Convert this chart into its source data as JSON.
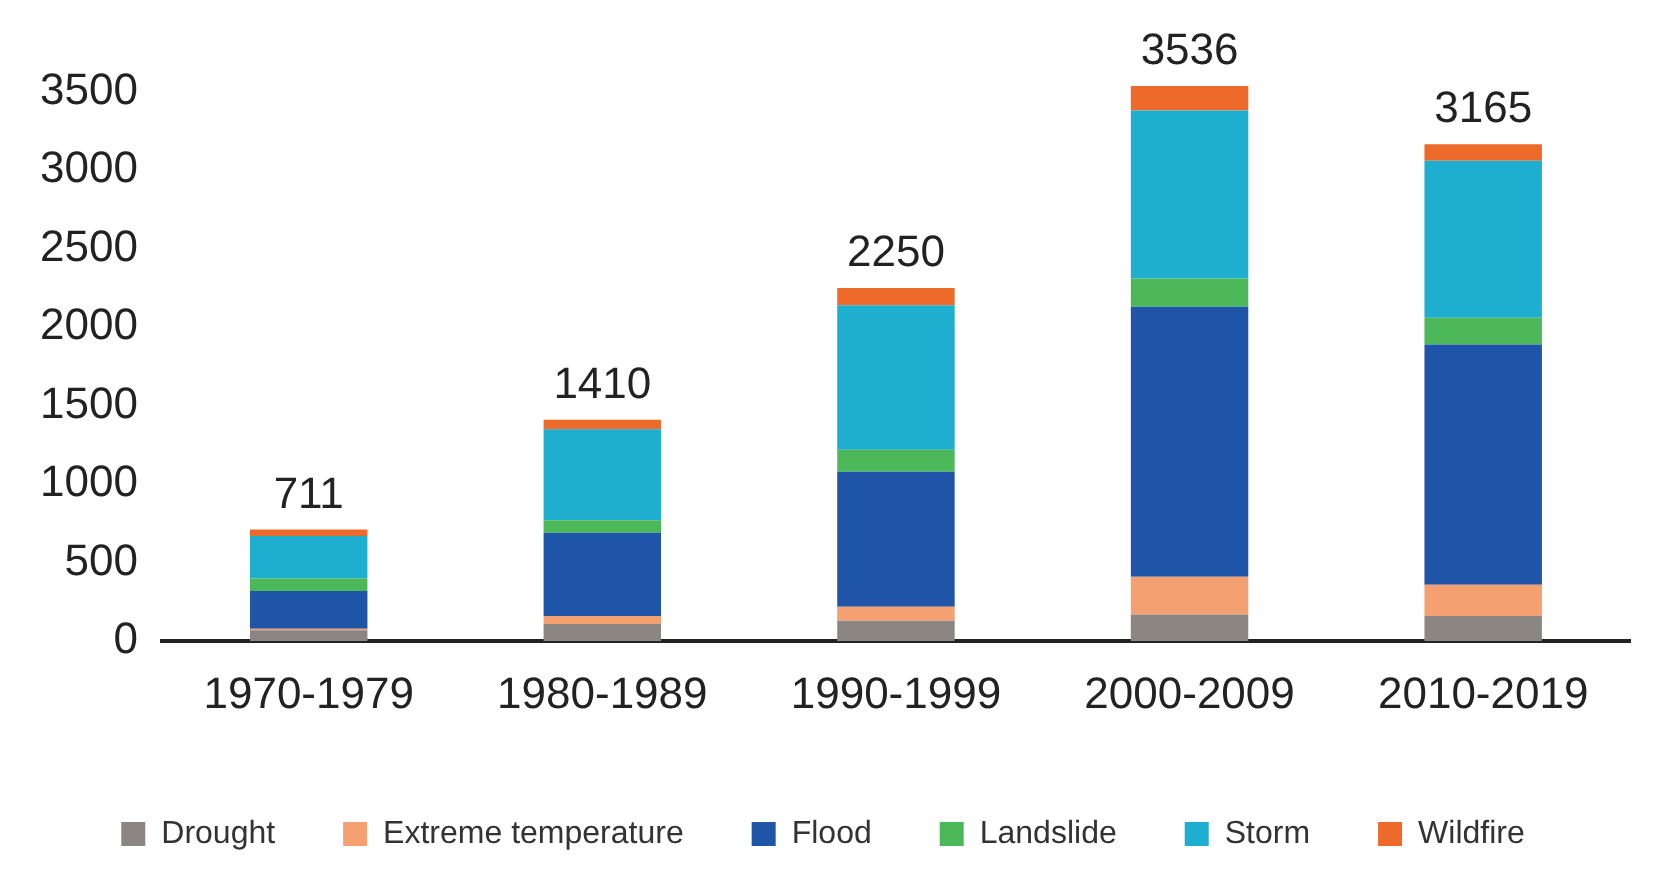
{
  "chart_data": {
    "type": "bar",
    "stacked": true,
    "categories": [
      "1970-1979",
      "1980-1989",
      "1990-1999",
      "2000-2009",
      "2010-2019"
    ],
    "series": [
      {
        "name": "Drought",
        "color": "#8c8682",
        "values": [
          70,
          110,
          130,
          170,
          160
        ]
      },
      {
        "name": "Extreme temperature",
        "color": "#f4a070",
        "values": [
          10,
          50,
          90,
          240,
          200
        ]
      },
      {
        "name": "Flood",
        "color": "#1f55a8",
        "values": [
          240,
          530,
          860,
          1720,
          1530
        ]
      },
      {
        "name": "Landslide",
        "color": "#4cb85a",
        "values": [
          80,
          80,
          140,
          180,
          170
        ]
      },
      {
        "name": "Storm",
        "color": "#1eaecf",
        "values": [
          270,
          580,
          920,
          1070,
          1000
        ]
      },
      {
        "name": "Wildfire",
        "color": "#ee6a2a",
        "values": [
          41,
          60,
          110,
          156,
          105
        ]
      }
    ],
    "totals": [
      "711",
      "1410",
      "2250",
      "3536",
      "3165"
    ],
    "ylim": [
      0,
      3600
    ],
    "yticks": [
      0,
      500,
      1000,
      1500,
      2000,
      2500,
      3000,
      3500
    ],
    "grid": false,
    "legend": "bottom"
  }
}
